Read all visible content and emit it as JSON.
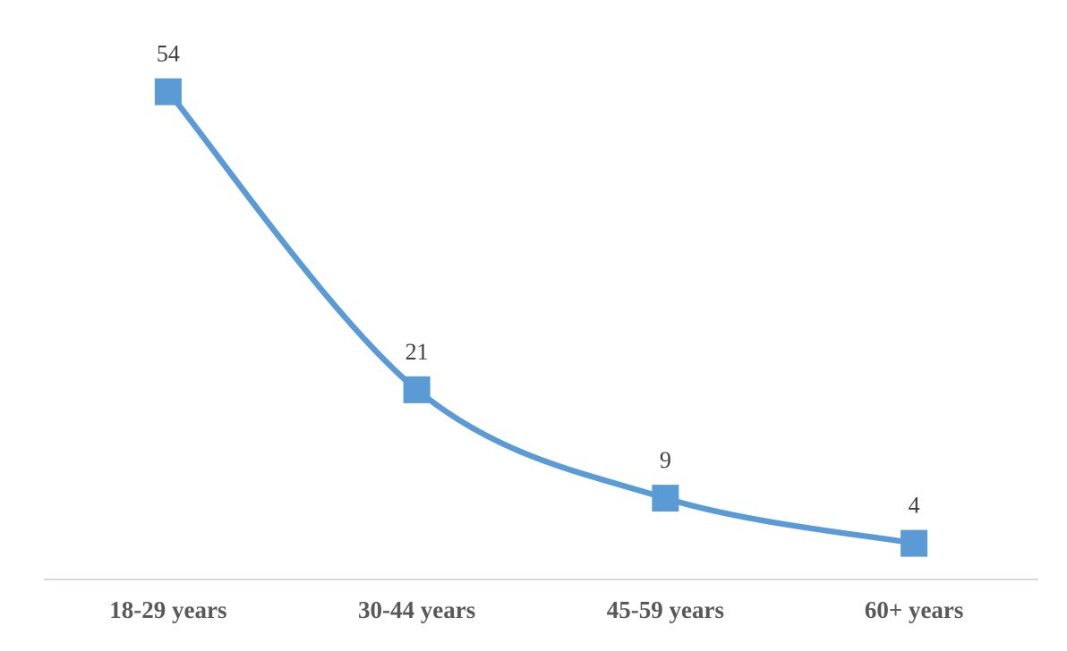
{
  "chart_data": {
    "type": "line",
    "categories": [
      "18-29 years",
      "30-44 years",
      "45-59 years",
      "60+ years"
    ],
    "values": [
      54,
      21,
      9,
      4
    ],
    "data_labels": [
      "54",
      "21",
      "9",
      "4"
    ],
    "title": "",
    "xlabel": "",
    "ylabel": "",
    "ylim": [
      0,
      60
    ],
    "grid": false,
    "legend": "none",
    "line_smooth": true,
    "marker_shape": "square",
    "colors": {
      "line": "#5B9BD5",
      "marker": "#5B9BD5",
      "axis_line": "#D9D9D9",
      "data_label": "#3F3F3F",
      "category_label": "#595959",
      "background": "#FFFFFF"
    }
  }
}
